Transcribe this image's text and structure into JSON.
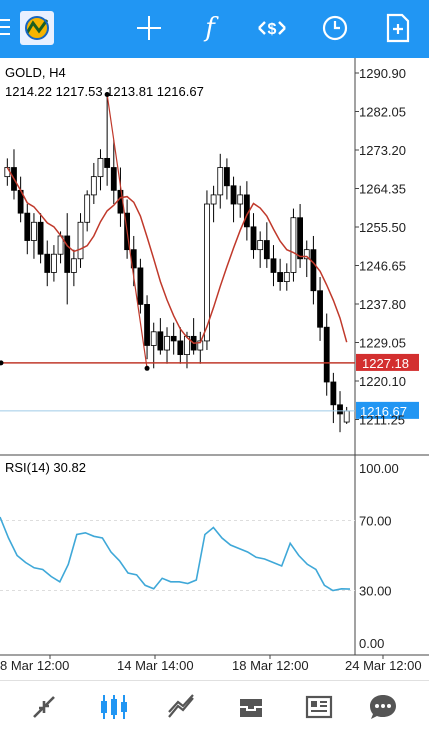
{
  "toolbar": {
    "icons": [
      "menu-icon",
      "app-logo",
      "crosshair-icon",
      "indicators-icon",
      "trade-icon",
      "clock-icon",
      "new-order-icon"
    ],
    "indicators_glyph": "f",
    "color": "#2196f3"
  },
  "symbol_label": "GOLD, H4",
  "ohlc_label": "1214.22 1217.53 1213.81 1216.67",
  "rsi_label": "RSI(14) 30.82",
  "price_axis": [
    "1290.90",
    "1282.05",
    "1273.20",
    "1264.35",
    "1255.50",
    "1246.65",
    "1237.80",
    "1229.05",
    "1220.10",
    "1211.25"
  ],
  "rsi_axis": [
    "100.00",
    "70.00",
    "30.00",
    "0.00"
  ],
  "time_axis": [
    "8 Mar 12:00",
    "14 Mar 14:00",
    "18 Mar 12:00",
    "24 Mar 12:00"
  ],
  "hline_price_label": "1227.18",
  "current_price_label": "1216.67",
  "colors": {
    "up_candle": "#ffffff",
    "down_candle": "#000000",
    "ma": "#c0392b",
    "hline": "#c0392b",
    "price_tag_bg": "#d32f2f",
    "current_tag_bg": "#2196f3",
    "rsi_line": "#3fa8d8"
  },
  "chart_data": [
    {
      "type": "candlestick",
      "title": "GOLD, H4",
      "x": [
        "8 Mar 12:00",
        "14 Mar 14:00",
        "18 Mar 12:00",
        "24 Mar 12:00"
      ],
      "ylim": [
        1207,
        1294
      ],
      "price_level": 1227.18,
      "last_price": 1216.67,
      "candles": [
        [
          1268,
          1272,
          1266,
          1270
        ],
        [
          1270,
          1274,
          1263,
          1265
        ],
        [
          1265,
          1268,
          1258,
          1260
        ],
        [
          1260,
          1262,
          1251,
          1254
        ],
        [
          1254,
          1260,
          1250,
          1258
        ],
        [
          1258,
          1260,
          1249,
          1251
        ],
        [
          1251,
          1254,
          1244,
          1247
        ],
        [
          1247,
          1253,
          1245,
          1251
        ],
        [
          1251,
          1256,
          1249,
          1255
        ],
        [
          1255,
          1260,
          1240,
          1247
        ],
        [
          1247,
          1252,
          1244,
          1250
        ],
        [
          1250,
          1260,
          1248,
          1258
        ],
        [
          1258,
          1265,
          1256,
          1264
        ],
        [
          1264,
          1271,
          1262,
          1268
        ],
        [
          1268,
          1274,
          1265,
          1272
        ],
        [
          1272,
          1286,
          1266,
          1270
        ],
        [
          1270,
          1276,
          1262,
          1265
        ],
        [
          1265,
          1270,
          1257,
          1260
        ],
        [
          1260,
          1263,
          1250,
          1252
        ],
        [
          1252,
          1255,
          1244,
          1248
        ],
        [
          1248,
          1250,
          1238,
          1240
        ],
        [
          1240,
          1242,
          1228,
          1231
        ],
        [
          1231,
          1236,
          1226,
          1234
        ],
        [
          1234,
          1237,
          1229,
          1230
        ],
        [
          1230,
          1235,
          1227,
          1233
        ],
        [
          1233,
          1236,
          1229,
          1232
        ],
        [
          1232,
          1235,
          1227,
          1229
        ],
        [
          1229,
          1234,
          1226,
          1233
        ],
        [
          1233,
          1237,
          1229,
          1230
        ],
        [
          1230,
          1234,
          1227,
          1232
        ],
        [
          1232,
          1265,
          1230,
          1262
        ],
        [
          1262,
          1266,
          1258,
          1264
        ],
        [
          1264,
          1273,
          1261,
          1270
        ],
        [
          1270,
          1272,
          1263,
          1266
        ],
        [
          1266,
          1268,
          1258,
          1262
        ],
        [
          1262,
          1266,
          1259,
          1264
        ],
        [
          1264,
          1267,
          1254,
          1257
        ],
        [
          1257,
          1260,
          1250,
          1252
        ],
        [
          1252,
          1256,
          1248,
          1254
        ],
        [
          1254,
          1258,
          1248,
          1250
        ],
        [
          1250,
          1253,
          1244,
          1247
        ],
        [
          1247,
          1250,
          1243,
          1245
        ],
        [
          1245,
          1249,
          1243,
          1247
        ],
        [
          1247,
          1261,
          1245,
          1259
        ],
        [
          1259,
          1262,
          1248,
          1250
        ],
        [
          1250,
          1254,
          1246,
          1252
        ],
        [
          1252,
          1255,
          1240,
          1243
        ],
        [
          1243,
          1246,
          1232,
          1235
        ],
        [
          1235,
          1238,
          1220,
          1223
        ],
        [
          1223,
          1225,
          1214,
          1218
        ],
        [
          1218,
          1221,
          1212,
          1216
        ],
        [
          1214.22,
          1217.53,
          1213.81,
          1216.67
        ]
      ]
    },
    {
      "type": "line",
      "title": "RSI(14) 30.82",
      "ylim": [
        0,
        100
      ],
      "series": [
        {
          "values": [
            72,
            60,
            50,
            46,
            43,
            42,
            38,
            35,
            45,
            62,
            63,
            61,
            60,
            52,
            47,
            40,
            39,
            33,
            31,
            37,
            35,
            35,
            34,
            36,
            62,
            66,
            60,
            56,
            54,
            52,
            49,
            48,
            46,
            44,
            57,
            50,
            45,
            42,
            33,
            30,
            31,
            30.82
          ]
        }
      ]
    }
  ]
}
